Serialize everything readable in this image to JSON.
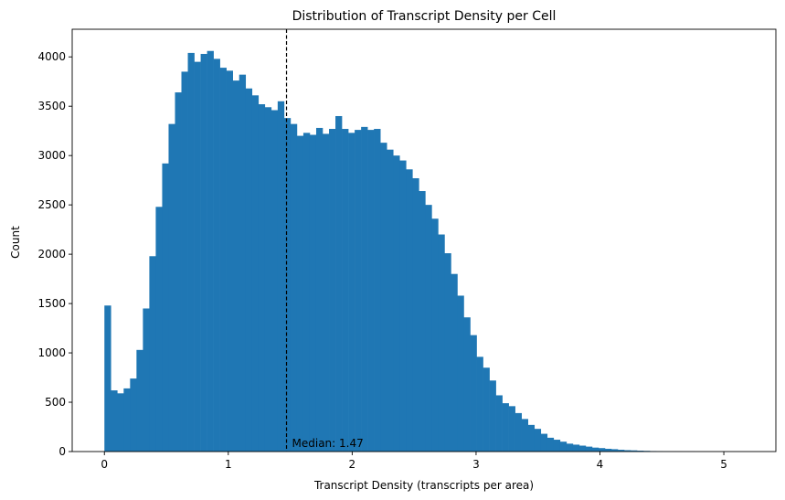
{
  "chart_data": {
    "type": "bar",
    "title": "Distribution of Transcript Density per Cell",
    "xlabel": "Transcript Density (transcripts per area)",
    "ylabel": "Count",
    "xlim": [
      -0.26,
      5.42
    ],
    "ylim": [
      0,
      4280
    ],
    "xticks": [
      0,
      1,
      2,
      3,
      4,
      5
    ],
    "yticks": [
      0,
      500,
      1000,
      1500,
      2000,
      2500,
      3000,
      3500,
      4000
    ],
    "grid": false,
    "legend": false,
    "bar_color": "#1f77b4",
    "bin_start": 0,
    "bin_width": 0.0518,
    "counts": [
      1480,
      620,
      590,
      640,
      740,
      1030,
      1450,
      1980,
      2480,
      2920,
      3320,
      3640,
      3850,
      4040,
      3950,
      4030,
      4060,
      3980,
      3890,
      3860,
      3760,
      3820,
      3680,
      3610,
      3520,
      3490,
      3460,
      3550,
      3380,
      3320,
      3200,
      3230,
      3210,
      3280,
      3220,
      3270,
      3400,
      3270,
      3230,
      3260,
      3290,
      3260,
      3270,
      3130,
      3060,
      3000,
      2950,
      2860,
      2770,
      2640,
      2500,
      2360,
      2200,
      2010,
      1800,
      1580,
      1360,
      1180,
      960,
      850,
      720,
      570,
      490,
      460,
      390,
      330,
      270,
      230,
      180,
      140,
      120,
      100,
      80,
      70,
      60,
      50,
      40,
      35,
      28,
      24,
      18,
      14,
      12,
      9,
      7,
      5,
      4,
      3,
      2,
      2,
      1,
      1,
      0,
      0,
      0,
      0,
      0,
      0,
      0,
      0
    ],
    "median_line": {
      "x": 1.47,
      "label": "Median: 1.47",
      "style": "dashed",
      "color": "#000000"
    }
  }
}
